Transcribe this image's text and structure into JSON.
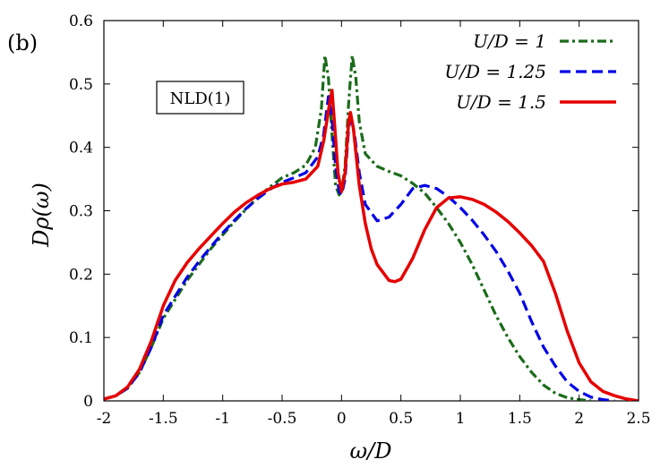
{
  "panel_label": "(b)",
  "annotation": "NLD(1)",
  "chart_data": {
    "type": "line",
    "title": "",
    "xlabel": "ω/D",
    "ylabel": "Dρ(ω)",
    "xlim": [
      -2,
      2.5
    ],
    "ylim": [
      0,
      0.6
    ],
    "xticks": [
      -2,
      -1.5,
      -1,
      -0.5,
      0,
      0.5,
      1,
      1.5,
      2,
      2.5
    ],
    "xtick_labels": [
      "-2",
      "-1.5",
      "-1",
      "-0.5",
      "0",
      "0.5",
      "1",
      "1.5",
      "2",
      "2.5"
    ],
    "yticks": [
      0,
      0.1,
      0.2,
      0.3,
      0.4,
      0.5,
      0.6
    ],
    "ytick_labels": [
      "0",
      "0.1",
      "0.2",
      "0.3",
      "0.4",
      "0.5",
      "0.6"
    ],
    "grid": false,
    "legend_position": "top-right",
    "series": [
      {
        "name": "U/D = 1",
        "color": "#1a6b1a",
        "dash": "dashdot",
        "points": [
          [
            -2.0,
            0.003
          ],
          [
            -1.9,
            0.008
          ],
          [
            -1.8,
            0.02
          ],
          [
            -1.7,
            0.045
          ],
          [
            -1.6,
            0.085
          ],
          [
            -1.5,
            0.13
          ],
          [
            -1.4,
            0.16
          ],
          [
            -1.3,
            0.19
          ],
          [
            -1.2,
            0.215
          ],
          [
            -1.1,
            0.24
          ],
          [
            -1.0,
            0.262
          ],
          [
            -0.9,
            0.283
          ],
          [
            -0.8,
            0.303
          ],
          [
            -0.7,
            0.322
          ],
          [
            -0.6,
            0.338
          ],
          [
            -0.5,
            0.352
          ],
          [
            -0.4,
            0.36
          ],
          [
            -0.3,
            0.372
          ],
          [
            -0.22,
            0.4
          ],
          [
            -0.17,
            0.46
          ],
          [
            -0.14,
            0.545
          ],
          [
            -0.11,
            0.51
          ],
          [
            -0.08,
            0.42
          ],
          [
            -0.05,
            0.34
          ],
          [
            -0.02,
            0.325
          ],
          [
            0.0,
            0.33
          ],
          [
            0.03,
            0.37
          ],
          [
            0.06,
            0.47
          ],
          [
            0.09,
            0.545
          ],
          [
            0.12,
            0.51
          ],
          [
            0.15,
            0.44
          ],
          [
            0.2,
            0.39
          ],
          [
            0.3,
            0.37
          ],
          [
            0.4,
            0.362
          ],
          [
            0.5,
            0.355
          ],
          [
            0.6,
            0.343
          ],
          [
            0.7,
            0.328
          ],
          [
            0.8,
            0.305
          ],
          [
            0.9,
            0.28
          ],
          [
            1.0,
            0.25
          ],
          [
            1.1,
            0.215
          ],
          [
            1.2,
            0.175
          ],
          [
            1.3,
            0.135
          ],
          [
            1.4,
            0.1
          ],
          [
            1.5,
            0.07
          ],
          [
            1.6,
            0.045
          ],
          [
            1.7,
            0.025
          ],
          [
            1.8,
            0.012
          ],
          [
            1.9,
            0.005
          ],
          [
            2.0,
            0.002
          ],
          [
            2.1,
            0.0
          ]
        ]
      },
      {
        "name": "U/D = 1.25",
        "color": "#0000e6",
        "dash": "dashed",
        "points": [
          [
            -2.0,
            0.003
          ],
          [
            -1.9,
            0.008
          ],
          [
            -1.8,
            0.02
          ],
          [
            -1.7,
            0.045
          ],
          [
            -1.6,
            0.085
          ],
          [
            -1.5,
            0.135
          ],
          [
            -1.4,
            0.165
          ],
          [
            -1.3,
            0.195
          ],
          [
            -1.2,
            0.22
          ],
          [
            -1.1,
            0.243
          ],
          [
            -1.0,
            0.265
          ],
          [
            -0.9,
            0.285
          ],
          [
            -0.8,
            0.304
          ],
          [
            -0.7,
            0.32
          ],
          [
            -0.6,
            0.334
          ],
          [
            -0.5,
            0.345
          ],
          [
            -0.4,
            0.352
          ],
          [
            -0.3,
            0.36
          ],
          [
            -0.2,
            0.385
          ],
          [
            -0.15,
            0.42
          ],
          [
            -0.11,
            0.48
          ],
          [
            -0.08,
            0.445
          ],
          [
            -0.05,
            0.37
          ],
          [
            -0.02,
            0.33
          ],
          [
            0.0,
            0.325
          ],
          [
            0.03,
            0.35
          ],
          [
            0.06,
            0.43
          ],
          [
            0.08,
            0.45
          ],
          [
            0.11,
            0.42
          ],
          [
            0.15,
            0.36
          ],
          [
            0.2,
            0.31
          ],
          [
            0.3,
            0.284
          ],
          [
            0.4,
            0.29
          ],
          [
            0.5,
            0.31
          ],
          [
            0.6,
            0.335
          ],
          [
            0.7,
            0.34
          ],
          [
            0.8,
            0.335
          ],
          [
            0.9,
            0.322
          ],
          [
            1.0,
            0.305
          ],
          [
            1.1,
            0.285
          ],
          [
            1.2,
            0.262
          ],
          [
            1.3,
            0.236
          ],
          [
            1.4,
            0.205
          ],
          [
            1.5,
            0.17
          ],
          [
            1.6,
            0.125
          ],
          [
            1.7,
            0.085
          ],
          [
            1.8,
            0.055
          ],
          [
            1.9,
            0.03
          ],
          [
            2.0,
            0.015
          ],
          [
            2.1,
            0.006
          ],
          [
            2.2,
            0.002
          ],
          [
            2.3,
            0.0
          ]
        ]
      },
      {
        "name": "U/D = 1.5",
        "color": "#e60000",
        "dash": "solid",
        "points": [
          [
            -2.0,
            0.003
          ],
          [
            -1.9,
            0.008
          ],
          [
            -1.8,
            0.022
          ],
          [
            -1.7,
            0.05
          ],
          [
            -1.6,
            0.095
          ],
          [
            -1.5,
            0.15
          ],
          [
            -1.4,
            0.19
          ],
          [
            -1.3,
            0.218
          ],
          [
            -1.2,
            0.24
          ],
          [
            -1.1,
            0.26
          ],
          [
            -1.0,
            0.28
          ],
          [
            -0.9,
            0.298
          ],
          [
            -0.8,
            0.313
          ],
          [
            -0.7,
            0.325
          ],
          [
            -0.6,
            0.335
          ],
          [
            -0.5,
            0.342
          ],
          [
            -0.4,
            0.345
          ],
          [
            -0.3,
            0.35
          ],
          [
            -0.2,
            0.37
          ],
          [
            -0.15,
            0.41
          ],
          [
            -0.1,
            0.47
          ],
          [
            -0.08,
            0.49
          ],
          [
            -0.06,
            0.44
          ],
          [
            -0.03,
            0.36
          ],
          [
            0.0,
            0.33
          ],
          [
            0.03,
            0.36
          ],
          [
            0.06,
            0.44
          ],
          [
            0.075,
            0.455
          ],
          [
            0.1,
            0.43
          ],
          [
            0.15,
            0.34
          ],
          [
            0.2,
            0.28
          ],
          [
            0.25,
            0.24
          ],
          [
            0.3,
            0.215
          ],
          [
            0.4,
            0.19
          ],
          [
            0.45,
            0.188
          ],
          [
            0.5,
            0.192
          ],
          [
            0.6,
            0.225
          ],
          [
            0.7,
            0.27
          ],
          [
            0.8,
            0.305
          ],
          [
            0.9,
            0.32
          ],
          [
            1.0,
            0.322
          ],
          [
            1.1,
            0.318
          ],
          [
            1.2,
            0.31
          ],
          [
            1.3,
            0.298
          ],
          [
            1.4,
            0.283
          ],
          [
            1.5,
            0.265
          ],
          [
            1.6,
            0.245
          ],
          [
            1.7,
            0.22
          ],
          [
            1.8,
            0.17
          ],
          [
            1.9,
            0.11
          ],
          [
            2.0,
            0.06
          ],
          [
            2.1,
            0.03
          ],
          [
            2.2,
            0.015
          ],
          [
            2.3,
            0.008
          ],
          [
            2.4,
            0.003
          ],
          [
            2.5,
            0.0
          ]
        ]
      }
    ]
  }
}
